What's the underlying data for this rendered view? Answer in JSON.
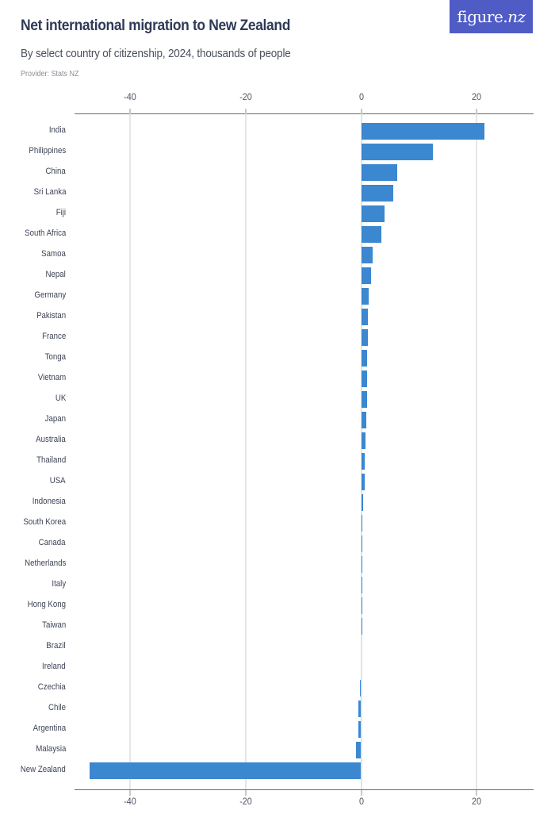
{
  "header": {
    "title": "Net international migration to New Zealand",
    "subtitle": "By select country of citizenship, 2024, thousands of people",
    "provider": "Provider: Stats NZ",
    "logo_main": "figure.",
    "logo_nz": "nz"
  },
  "colors": {
    "bar": "#3b87d0",
    "logo_bg": "#4f5cc6",
    "title": "#2f3a57"
  },
  "axis": {
    "ticks": [
      "-40",
      "-20",
      "0",
      "20"
    ]
  },
  "chart_data": {
    "type": "bar",
    "orientation": "horizontal",
    "title": "Net international migration to New Zealand",
    "subtitle": "By select country of citizenship, 2024, thousands of people",
    "source": "Provider: Stats NZ",
    "xlabel": "",
    "ylabel": "",
    "xlim": [
      -50,
      30
    ],
    "xticks": [
      -40,
      -20,
      0,
      20
    ],
    "grid": true,
    "legend": null,
    "categories": [
      "India",
      "Philippines",
      "China",
      "Sri Lanka",
      "Fiji",
      "South Africa",
      "Samoa",
      "Nepal",
      "Germany",
      "Pakistan",
      "France",
      "Tonga",
      "Vietnam",
      "UK",
      "Japan",
      "Australia",
      "Thailand",
      "USA",
      "Indonesia",
      "South Korea",
      "Canada",
      "Netherlands",
      "Italy",
      "Hong Kong",
      "Taiwan",
      "Brazil",
      "Ireland",
      "Czechia",
      "Chile",
      "Argentina",
      "Malaysia",
      "New Zealand"
    ],
    "values": [
      21.4,
      12.4,
      6.3,
      5.6,
      4.0,
      3.5,
      2.0,
      1.7,
      1.3,
      1.2,
      1.1,
      1.05,
      1.0,
      1.0,
      0.85,
      0.75,
      0.65,
      0.6,
      0.35,
      0.25,
      0.2,
      0.15,
      0.1,
      0.03,
      0.02,
      0.01,
      0.0,
      -0.2,
      -0.45,
      -0.5,
      -0.9,
      -47.0
    ]
  }
}
